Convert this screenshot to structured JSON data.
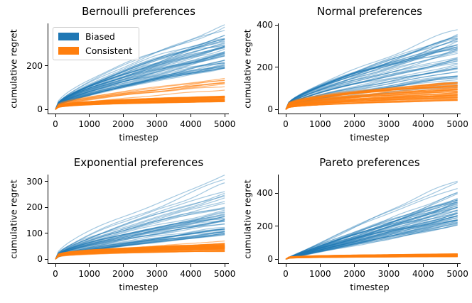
{
  "figure": {
    "background": "#ffffff",
    "colors": {
      "biased": "#1f77b4",
      "consistent": "#ff7f0e",
      "axis": "#000000"
    },
    "legend": {
      "position": "upper left of first subplot",
      "entries": [
        {
          "label": "Biased",
          "color": "#1f77b4"
        },
        {
          "label": "Consistent",
          "color": "#ff7f0e"
        }
      ]
    }
  },
  "chart_data": [
    {
      "type": "line",
      "title": "Bernoulli preferences",
      "xlabel": "timestep",
      "ylabel": "cumulative regret",
      "xlim": [
        -210,
        5124
      ],
      "ylim": [
        -19,
        395
      ],
      "xticks": [
        0,
        1000,
        2000,
        3000,
        4000,
        5000
      ],
      "yticks": [
        0,
        200
      ],
      "grid": false,
      "legend": true,
      "x_end": 5000,
      "series": [
        {
          "name": "Biased",
          "color": "#1f77b4",
          "opacity": 0.4,
          "groups": [
            {
              "count": 40,
              "final": [
                185,
                300
              ],
              "lin": 0.55,
              "pow": 0.4
            },
            {
              "count": 12,
              "final": [
                300,
                385
              ],
              "lin": 0.58,
              "pow": 0.42
            }
          ]
        },
        {
          "name": "Consistent",
          "color": "#ff7f0e",
          "opacity": 0.55,
          "groups": [
            {
              "count": 48,
              "final": [
                36,
                62
              ],
              "lin": 0.12,
              "pow": 0.28
            },
            {
              "count": 9,
              "final": [
                75,
                140
              ],
              "lin": 0.5,
              "pow": 0.3
            }
          ]
        }
      ]
    },
    {
      "type": "line",
      "title": "Normal preferences",
      "xlabel": "timestep",
      "ylabel": "cumulative regret",
      "xlim": [
        -207,
        5090
      ],
      "ylim": [
        -19.5,
        407
      ],
      "xticks": [
        0,
        1000,
        2000,
        3000,
        4000,
        5000
      ],
      "yticks": [
        0,
        200,
        400
      ],
      "grid": false,
      "legend": false,
      "x_end": 5000,
      "series": [
        {
          "name": "Biased",
          "color": "#1f77b4",
          "opacity": 0.4,
          "groups": [
            {
              "count": 42,
              "final": [
                110,
                330
              ],
              "lin": 0.55,
              "pow": 0.4
            },
            {
              "count": 6,
              "final": [
                330,
                388
              ],
              "lin": 0.6,
              "pow": 0.42
            }
          ]
        },
        {
          "name": "Consistent",
          "color": "#ff7f0e",
          "opacity": 0.55,
          "groups": [
            {
              "count": 55,
              "final": [
                42,
                130
              ],
              "lin": 0.3,
              "pow": 0.3
            }
          ]
        }
      ]
    },
    {
      "type": "line",
      "title": "Exponential preferences",
      "xlabel": "timestep",
      "ylabel": "cumulative regret",
      "xlim": [
        -210,
        5124
      ],
      "ylim": [
        -16,
        326
      ],
      "xticks": [
        0,
        1000,
        2000,
        3000,
        4000,
        5000
      ],
      "yticks": [
        0,
        100,
        200,
        300
      ],
      "grid": false,
      "legend": false,
      "x_end": 5000,
      "series": [
        {
          "name": "Biased",
          "color": "#1f77b4",
          "opacity": 0.4,
          "groups": [
            {
              "count": 44,
              "final": [
                90,
                235
              ],
              "lin": 0.55,
              "pow": 0.4
            },
            {
              "count": 6,
              "final": [
                240,
                318
              ],
              "lin": 0.6,
              "pow": 0.42
            }
          ]
        },
        {
          "name": "Consistent",
          "color": "#ff7f0e",
          "opacity": 0.55,
          "groups": [
            {
              "count": 50,
              "final": [
                30,
                56
              ],
              "lin": 0.1,
              "pow": 0.25
            },
            {
              "count": 7,
              "final": [
                56,
                68
              ],
              "lin": 0.28,
              "pow": 0.3
            }
          ]
        }
      ]
    },
    {
      "type": "line",
      "title": "Pareto preferences",
      "xlabel": "timestep",
      "ylabel": "cumulative regret",
      "xlim": [
        -207,
        5090
      ],
      "ylim": [
        -24.5,
        513
      ],
      "xticks": [
        0,
        1000,
        2000,
        3000,
        4000,
        5000
      ],
      "yticks": [
        0,
        200,
        400
      ],
      "grid": false,
      "legend": false,
      "x_end": 5000,
      "series": [
        {
          "name": "Biased",
          "color": "#1f77b4",
          "opacity": 0.4,
          "groups": [
            {
              "count": 50,
              "final": [
                200,
                400
              ],
              "lin": 0.92,
              "pow": 0.5
            },
            {
              "count": 3,
              "final": [
                430,
                489
              ],
              "lin": 0.95,
              "pow": 0.5
            }
          ]
        },
        {
          "name": "Consistent",
          "color": "#ff7f0e",
          "opacity": 0.55,
          "groups": [
            {
              "count": 55,
              "final": [
                15,
                32
              ],
              "lin": 0.12,
              "pow": 0.2
            }
          ]
        }
      ]
    }
  ]
}
